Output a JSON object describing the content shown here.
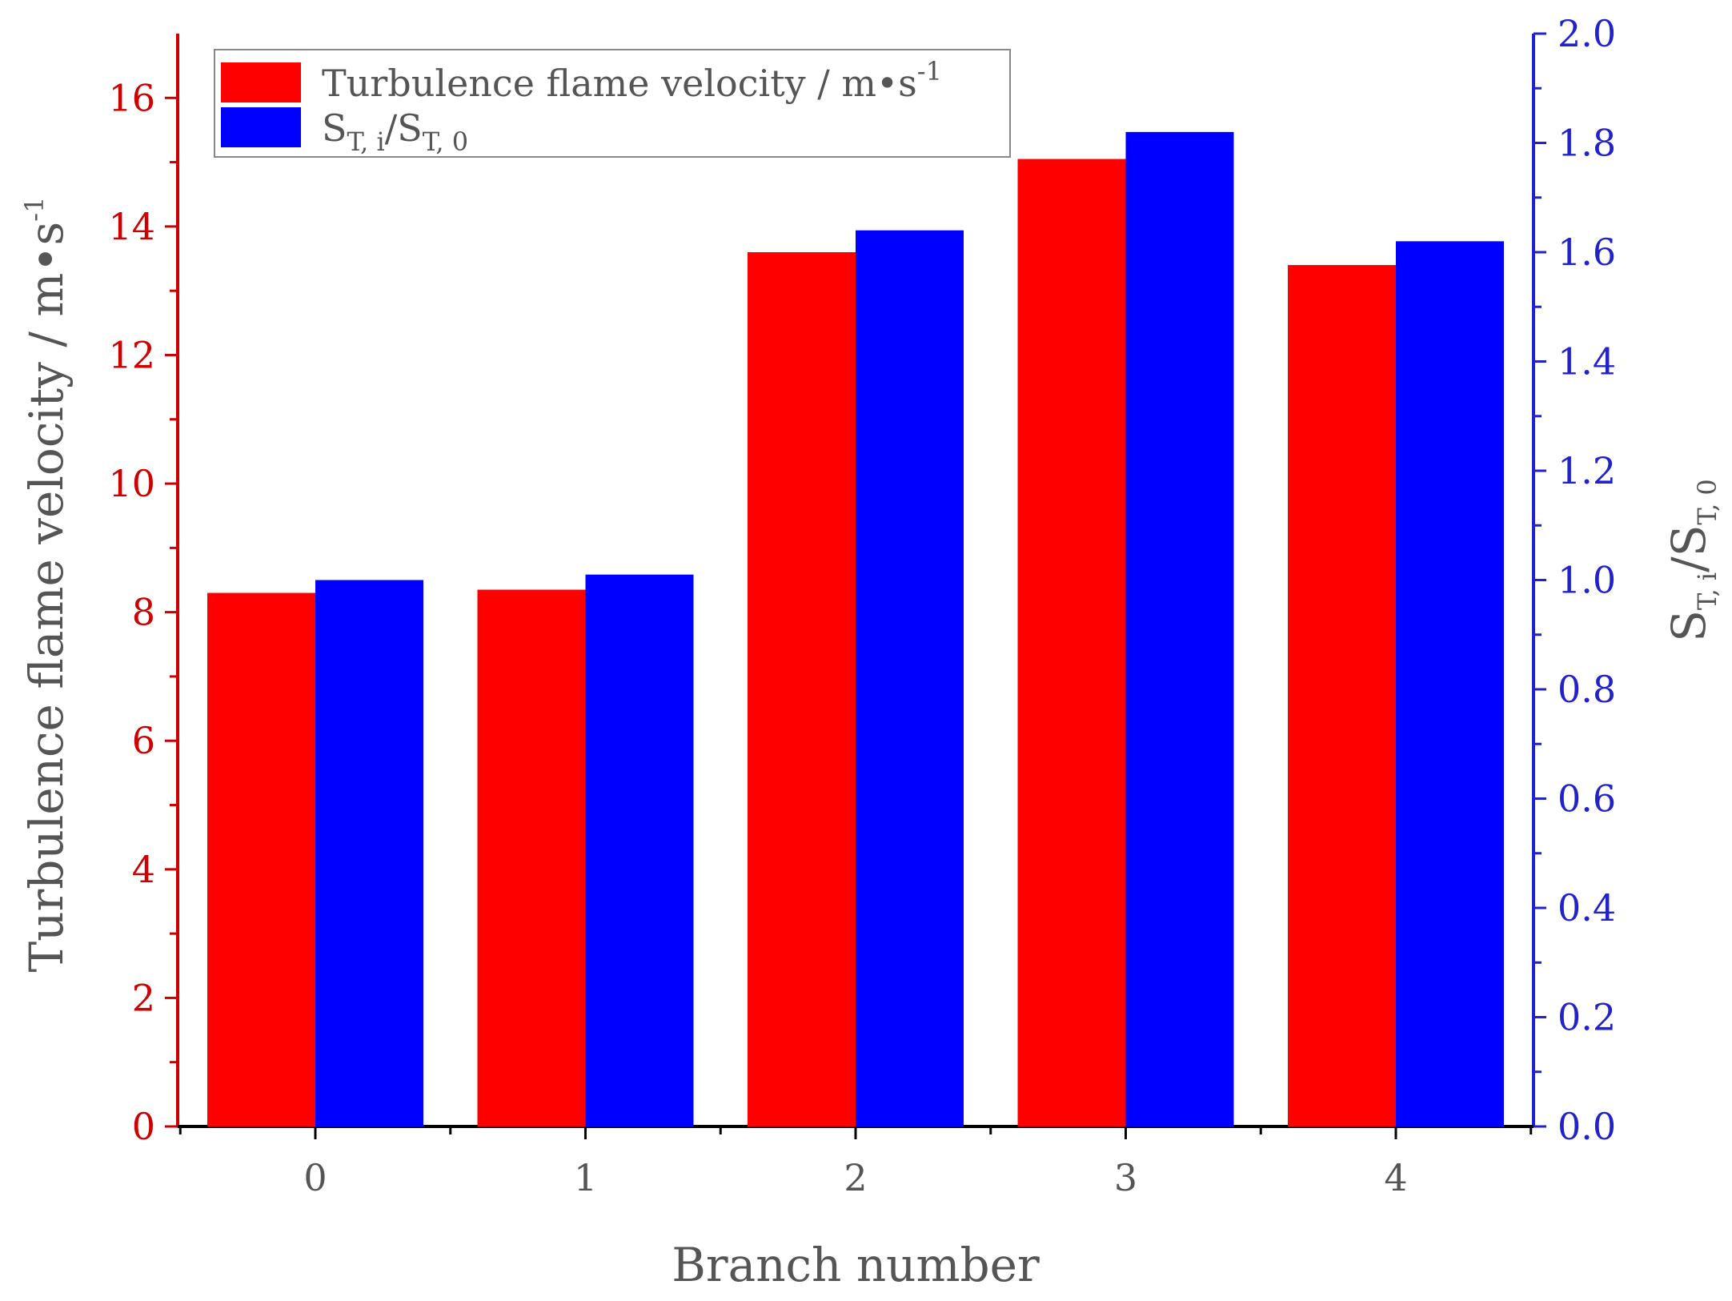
{
  "chart_data": {
    "type": "bar",
    "categories": [
      "0",
      "1",
      "2",
      "3",
      "4"
    ],
    "series": [
      {
        "name": "Turbulence flame velocity / m•s-1",
        "axis": "left",
        "color": "#ff0000",
        "values": [
          8.3,
          8.35,
          13.6,
          15.05,
          13.4
        ]
      },
      {
        "name": "ST,i/ST,0",
        "axis": "right",
        "color": "#0000ff",
        "values": [
          1.0,
          1.01,
          1.64,
          1.82,
          1.62
        ]
      }
    ],
    "xlabel": "Branch number",
    "ylabel": "Turbulence flame velocity / m•s-1",
    "ylabel_right": "ST,i/ST,0",
    "ylim": [
      0,
      17
    ],
    "ylim_right": [
      0,
      2.0
    ],
    "yticks": [
      "0",
      "2",
      "4",
      "6",
      "8",
      "10",
      "12",
      "14",
      "16"
    ],
    "yticks_right": [
      "0.0",
      "0.2",
      "0.4",
      "0.6",
      "0.8",
      "1.0",
      "1.2",
      "1.4",
      "1.6",
      "1.8",
      "2.0"
    ],
    "left_axis_color": "#cc0000",
    "right_axis_color": "#2222cc",
    "legend_placement": "top-left",
    "grid": false
  },
  "text": {
    "xlabel": "Branch number",
    "ylabel_main": "Turbulence flame velocity / m•s",
    "ylabel_sup": "-1",
    "ylabel_right_base": "S",
    "ylabel_right_sub1": "T, i",
    "ylabel_right_mid": "/S",
    "ylabel_right_sub2": "T, 0",
    "legend_red_main": "Turbulence flame velocity / m•s",
    "legend_red_sup": "-1",
    "legend_blue_base": "S",
    "legend_blue_sub1": "T, i",
    "legend_blue_mid": "/S",
    "legend_blue_sub2": "T, 0"
  }
}
